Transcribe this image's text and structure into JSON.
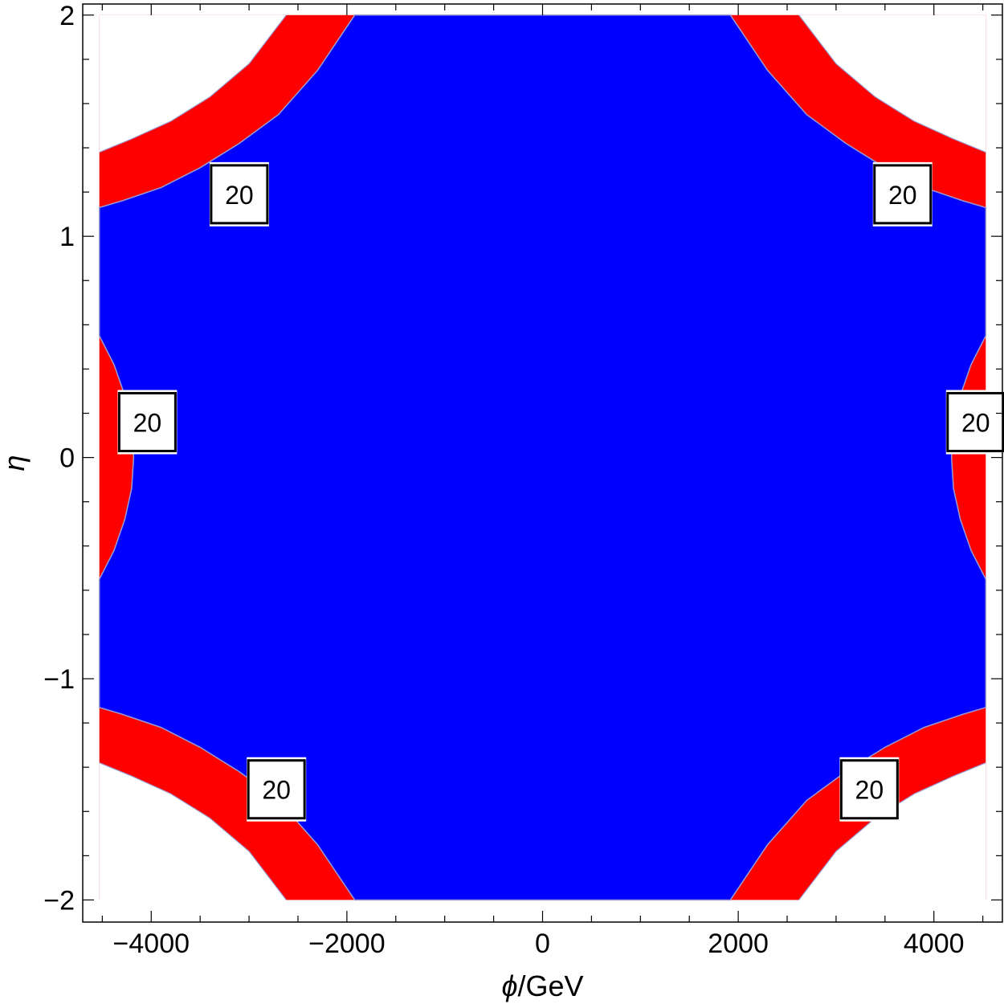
{
  "chart_data": {
    "type": "contour",
    "title": "",
    "xlabel": "ϕ/GeV",
    "xlabel_symbol": "ϕ",
    "xlabel_unit": "/GeV",
    "ylabel": "η",
    "xlim": [
      -4700,
      4700
    ],
    "ylim": [
      -2.1,
      2.05
    ],
    "x_data_range": [
      -4530,
      4530
    ],
    "y_data_range": [
      -2.0,
      2.0
    ],
    "x_major_ticks": [
      {
        "value": -4000,
        "label": "−4000"
      },
      {
        "value": -2000,
        "label": "−2000"
      },
      {
        "value": 0,
        "label": "0"
      },
      {
        "value": 2000,
        "label": "2000"
      },
      {
        "value": 4000,
        "label": "4000"
      }
    ],
    "y_major_ticks": [
      {
        "value": -2,
        "label": "−2"
      },
      {
        "value": -1,
        "label": "−1"
      },
      {
        "value": 0,
        "label": "0"
      },
      {
        "value": 1,
        "label": "1"
      },
      {
        "value": 2,
        "label": "2"
      }
    ],
    "x_minor_step": 500,
    "y_minor_step": 0.2,
    "colors": {
      "inner_region": "#0000ff",
      "band_region": "#ff0000",
      "outside_region": "#ffffff",
      "contour_line": "#9a9ad0"
    },
    "contour_level": "20",
    "corner_bands": {
      "inner_boundary": [
        [
          1920,
          2.0
        ],
        [
          2300,
          1.75
        ],
        [
          2700,
          1.55
        ],
        [
          3100,
          1.42
        ],
        [
          3500,
          1.31
        ],
        [
          3900,
          1.22
        ],
        [
          4300,
          1.16
        ],
        [
          4530,
          1.13
        ]
      ],
      "outer_boundary": [
        [
          2620,
          2.0
        ],
        [
          3000,
          1.78
        ],
        [
          3400,
          1.63
        ],
        [
          3800,
          1.52
        ],
        [
          4200,
          1.44
        ],
        [
          4530,
          1.38
        ]
      ]
    },
    "side_lobes": {
      "boundary": [
        [
          4530,
          0.55
        ],
        [
          4380,
          0.42
        ],
        [
          4270,
          0.28
        ],
        [
          4200,
          0.14
        ],
        [
          4180,
          0.0
        ],
        [
          4200,
          -0.14
        ],
        [
          4270,
          -0.28
        ],
        [
          4380,
          -0.42
        ],
        [
          4530,
          -0.55
        ]
      ]
    },
    "contour_labels": [
      {
        "x": -3100,
        "y": 1.19,
        "text": "20"
      },
      {
        "x": 3680,
        "y": 1.19,
        "text": "20"
      },
      {
        "x": -4040,
        "y": 0.16,
        "text": "20"
      },
      {
        "x": 4140,
        "y": 0.16,
        "text": "20",
        "anchor": "left"
      },
      {
        "x": -2720,
        "y": -1.5,
        "text": "20"
      },
      {
        "x": 3340,
        "y": -1.5,
        "text": "20"
      }
    ]
  }
}
